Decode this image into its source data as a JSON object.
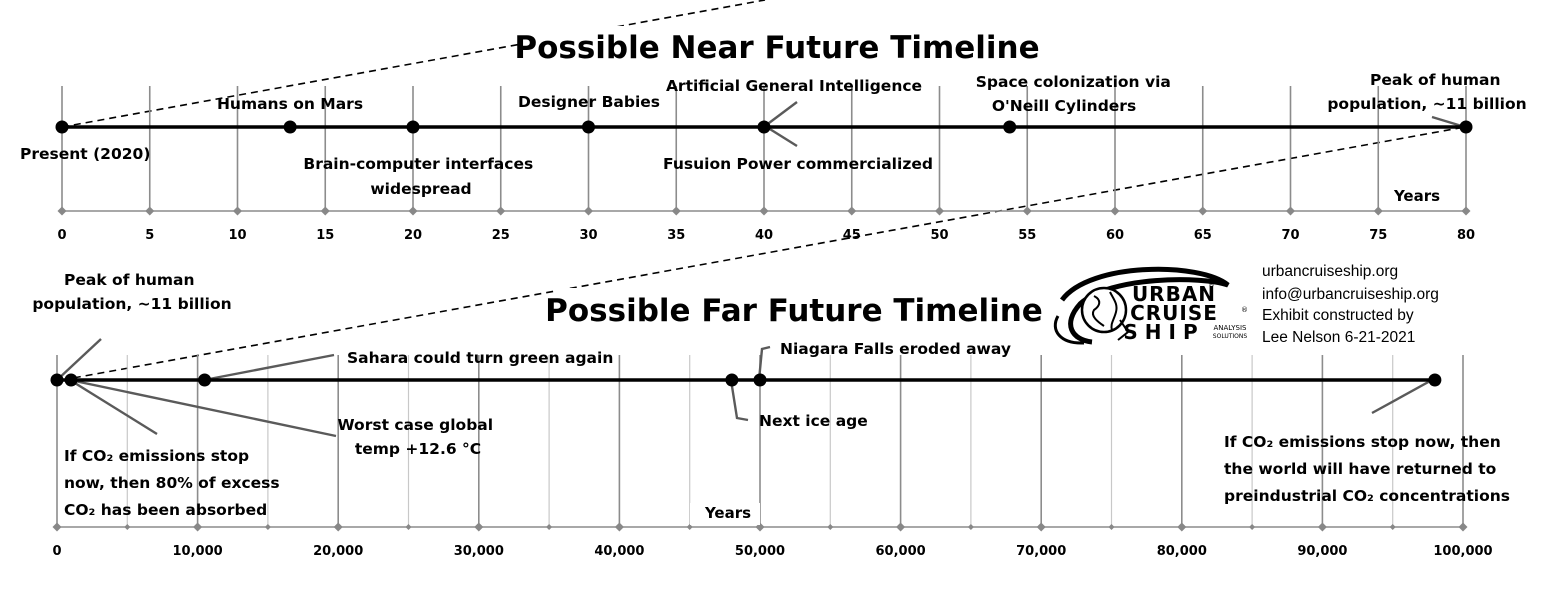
{
  "near": {
    "title": "Possible Near Future Timeline",
    "axis_label": "Years",
    "ticks": [
      "0",
      "5",
      "10",
      "15",
      "20",
      "25",
      "30",
      "35",
      "40",
      "45",
      "50",
      "55",
      "60",
      "65",
      "70",
      "75",
      "80"
    ],
    "events": [
      {
        "id": "present",
        "year": 0,
        "lines": [
          "Present (2020)"
        ]
      },
      {
        "id": "mars",
        "year": 13,
        "lines": [
          "Humans on Mars"
        ]
      },
      {
        "id": "bci",
        "year": 20,
        "lines": [
          "Brain-computer interfaces",
          "widespread"
        ]
      },
      {
        "id": "babies",
        "year": 30,
        "lines": [
          "Designer Babies"
        ]
      },
      {
        "id": "agi",
        "year": 40,
        "lines": [
          "Artificial General Intelligence"
        ]
      },
      {
        "id": "fusion",
        "year": 40,
        "lines": [
          "Fusuion Power commercialized"
        ]
      },
      {
        "id": "oneill",
        "year": 54,
        "lines": [
          "Space colonization via",
          "O'Neill Cylinders"
        ]
      },
      {
        "id": "peak",
        "year": 80,
        "lines": [
          "Peak of human",
          "population, ~11 billion"
        ]
      }
    ]
  },
  "far": {
    "title": "Possible Far Future Timeline",
    "axis_label": "Years",
    "ticks": [
      "0",
      "10,000",
      "20,000",
      "30,000",
      "40,000",
      "50,000",
      "60,000",
      "70,000",
      "80,000",
      "90,000",
      "100,000"
    ],
    "events": [
      {
        "id": "peak",
        "year": 0,
        "lines": [
          "Peak of human",
          "population, ~11 billion"
        ]
      },
      {
        "id": "co2_80",
        "year": 1000,
        "lines": [
          "If CO₂ emissions stop",
          "now, then 80% of excess",
          "CO₂ has been absorbed"
        ]
      },
      {
        "id": "sahara",
        "year": 10500,
        "lines": [
          "Sahara could turn green again"
        ]
      },
      {
        "id": "worst",
        "year": 10500,
        "lines": [
          "Worst case global",
          "temp +12.6 °C"
        ]
      },
      {
        "id": "iceage",
        "year": 48000,
        "lines": [
          "Next ice age"
        ]
      },
      {
        "id": "niagara",
        "year": 50000,
        "lines": [
          "Niagara Falls eroded away"
        ]
      },
      {
        "id": "preind",
        "year": 98000,
        "lines": [
          "If CO₂ emissions stop now, then",
          "the world will have returned to",
          "preindustrial CO₂ concentrations"
        ]
      }
    ]
  },
  "logo": {
    "line1": "URBAN",
    "line2": "CRUISE",
    "line3": "SHIP",
    "tag1": "ANALYSIS",
    "tag2": "SOLUTIONS"
  },
  "contact": {
    "website": "urbancruiseship.org",
    "email": "info@urbancruiseship.org",
    "credit1": "Exhibit constructed by",
    "credit2": "Lee Nelson 6-21-2021"
  }
}
